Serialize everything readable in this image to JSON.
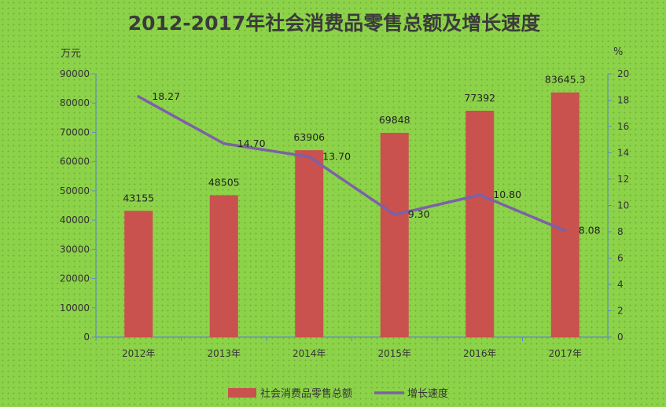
{
  "chart_data": {
    "type": "bar",
    "title": "2012-2017年社会消费品零售总额及增长速度",
    "categories": [
      "2012年",
      "2013年",
      "2014年",
      "2015年",
      "2016年",
      "2017年"
    ],
    "series": [
      {
        "name": "社会消费品零售总额",
        "type": "bar",
        "axis": "left",
        "values": [
          43155,
          48505,
          63906,
          69848,
          77392,
          83645.3
        ],
        "value_labels": [
          "43155",
          "48505",
          "63906",
          "69848",
          "77392",
          "83645.3"
        ],
        "color": "#c9514e"
      },
      {
        "name": "增长速度",
        "type": "line",
        "axis": "right",
        "values": [
          18.27,
          14.7,
          13.7,
          9.3,
          10.8,
          8.08
        ],
        "value_labels": [
          "18.27",
          "14.70",
          "13.70",
          "9.30",
          "10.80",
          "8.08"
        ],
        "color": "#7b61a8"
      }
    ],
    "y_left": {
      "unit": "万元",
      "range": [
        0,
        90000
      ],
      "ticks": [
        "0",
        "10000",
        "20000",
        "30000",
        "40000",
        "50000",
        "60000",
        "70000",
        "80000",
        "90000"
      ]
    },
    "y_right": {
      "unit": "%",
      "range": [
        0,
        20
      ],
      "ticks": [
        "0",
        "2",
        "4",
        "6",
        "8",
        "10",
        "12",
        "14",
        "16",
        "18",
        "20"
      ]
    },
    "grid": false,
    "legend_position": "bottom"
  }
}
